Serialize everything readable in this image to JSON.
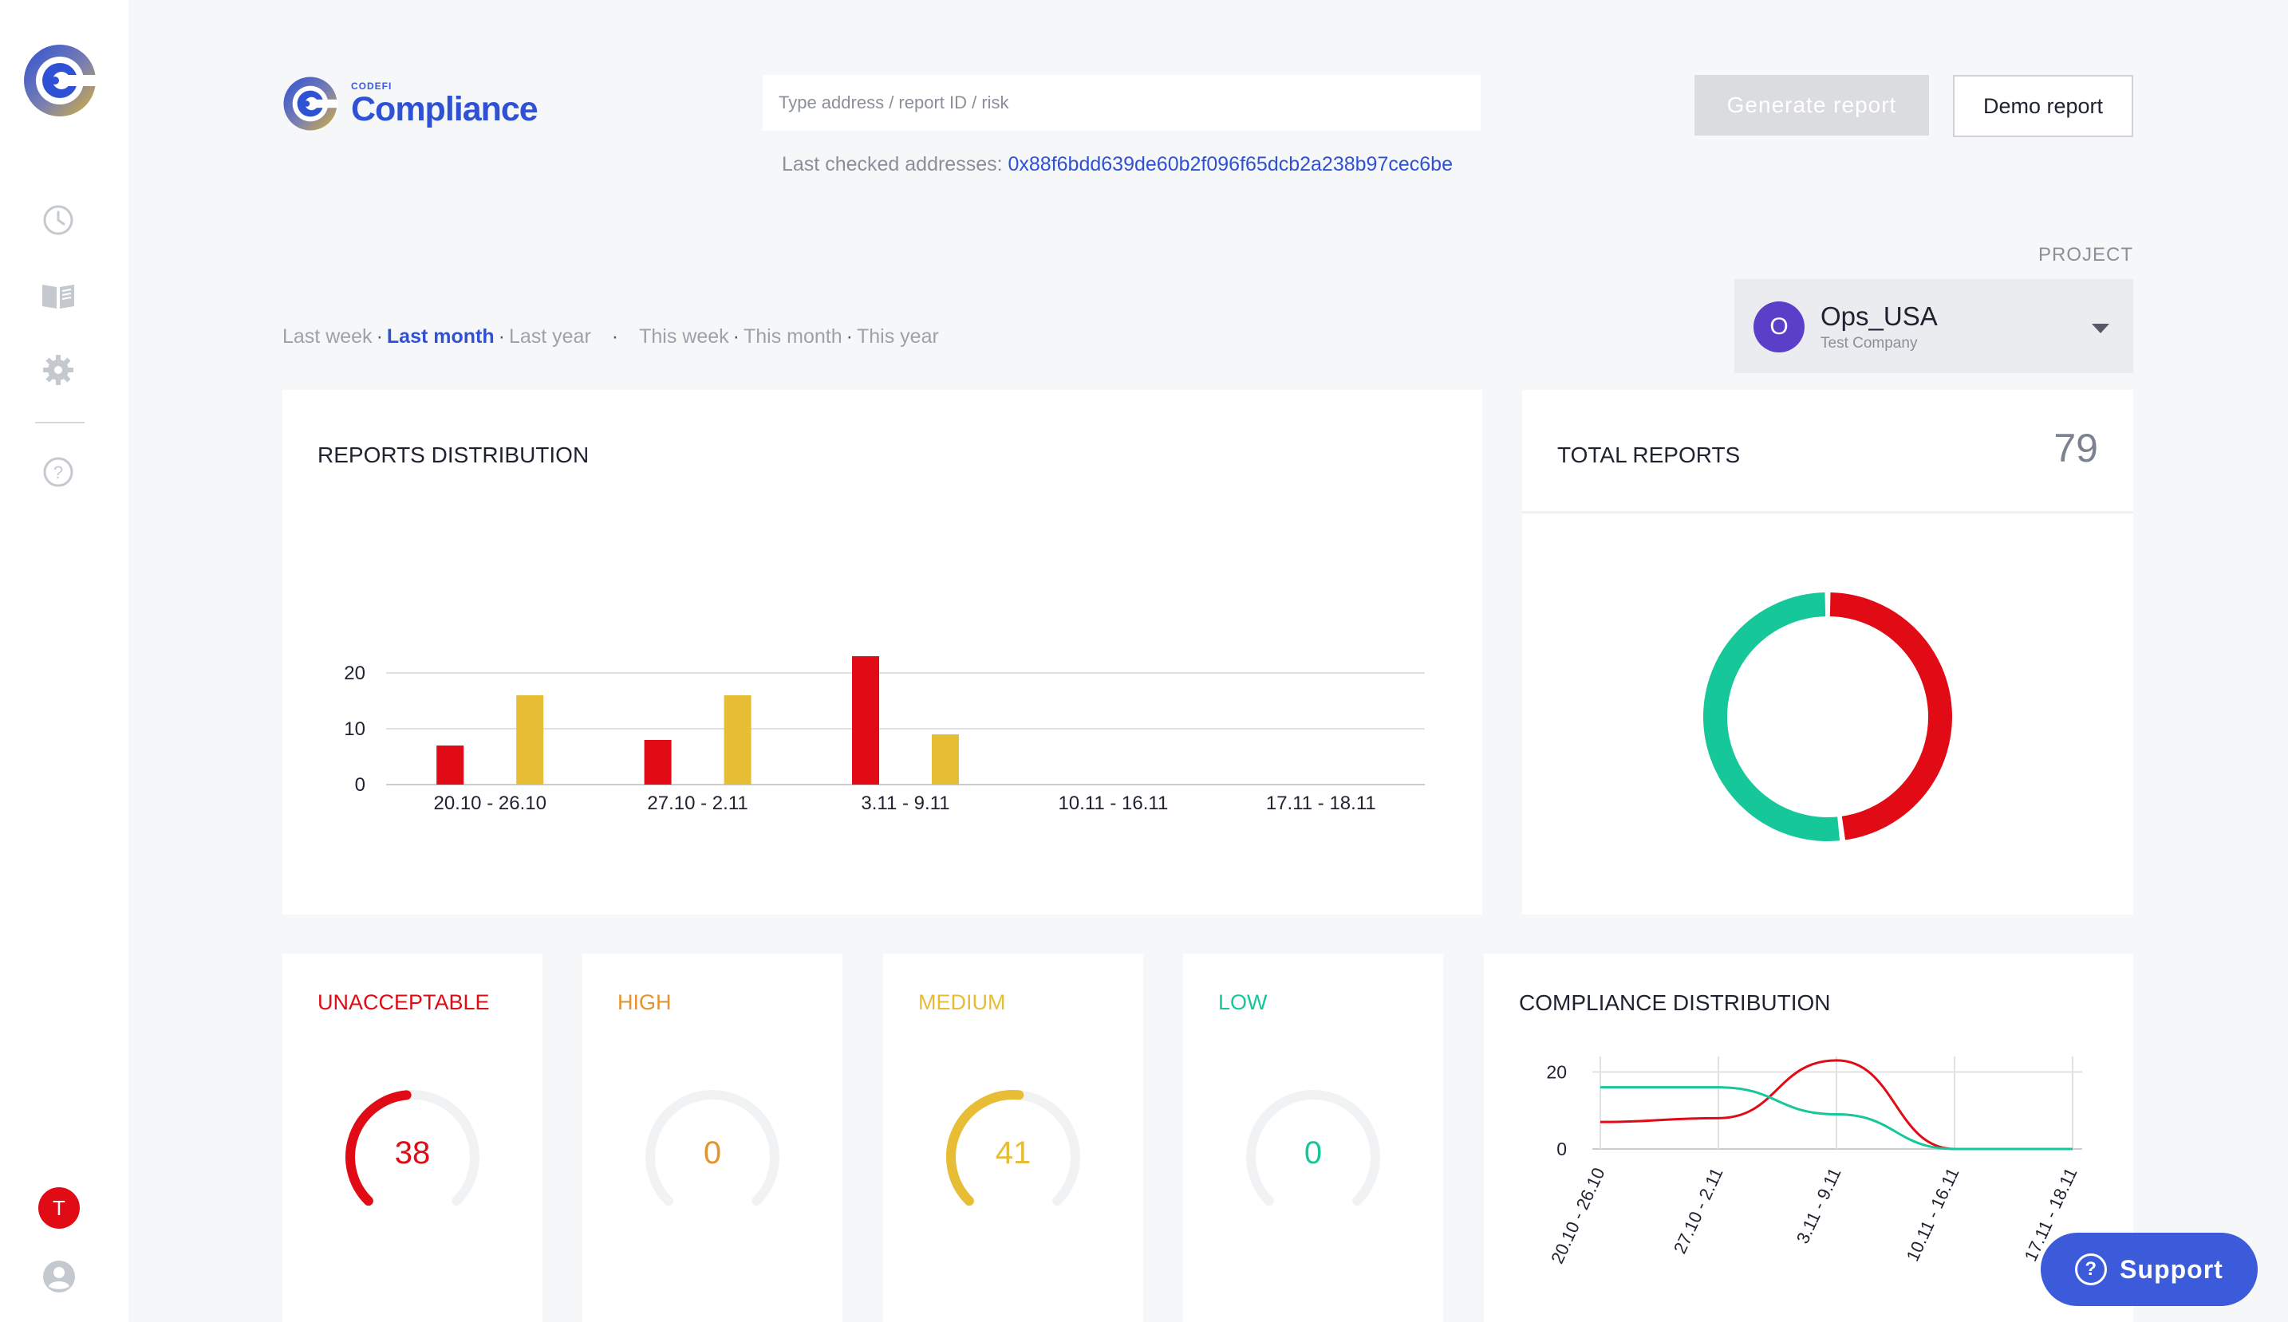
{
  "colors": {
    "brand_blue": "#2f52d4",
    "unacceptable": "#e00b14",
    "high": "#e4932e",
    "medium": "#e6bd35",
    "low": "#16c79a",
    "generate_disabled": "#dadcdf",
    "project_avatar": "#5b3fc8"
  },
  "sidebar": {
    "logo_icon": "codefi-logo-icon",
    "items": [
      {
        "icon": "clock-icon",
        "name": "history"
      },
      {
        "icon": "book-icon",
        "name": "documentation"
      },
      {
        "icon": "gear-icon",
        "name": "settings"
      },
      {
        "icon": "help-icon",
        "name": "help"
      }
    ],
    "avatar_initial": "T",
    "user_icon": "user-icon"
  },
  "header": {
    "brand_sub": "CODEFI",
    "brand_name": "Compliance",
    "search_placeholder": "Type address / report ID / risk",
    "last_checked_label": "Last checked addresses: ",
    "last_checked_address": "0x88f6bdd639de60b2f096f65dcb2a238b97cec6be",
    "generate_label": "Generate report",
    "demo_label": "Demo report"
  },
  "project": {
    "label": "PROJECT",
    "initial": "O",
    "name": "Ops_USA",
    "company": "Test Company"
  },
  "periods": {
    "last_week": "Last week",
    "last_month": "Last month",
    "last_year": "Last year",
    "this_week": "This week",
    "this_month": "This month",
    "this_year": "This year",
    "active": "last_month",
    "sep": " · "
  },
  "reports_distribution": {
    "title": "REPORTS DISTRIBUTION"
  },
  "total_reports": {
    "title": "TOTAL REPORTS",
    "value": "79"
  },
  "risks": [
    {
      "key": "unacceptable",
      "label": "UNACCEPTABLE",
      "value": "38",
      "fraction": 0.48,
      "color": "#e00b14"
    },
    {
      "key": "high",
      "label": "HIGH",
      "value": "0",
      "fraction": 0,
      "color": "#e4932e"
    },
    {
      "key": "medium",
      "label": "MEDIUM",
      "value": "41",
      "fraction": 0.52,
      "color": "#e6bd35"
    },
    {
      "key": "low",
      "label": "LOW",
      "value": "0",
      "fraction": 0,
      "color": "#16c79a"
    }
  ],
  "compliance_distribution": {
    "title": "COMPLIANCE DISTRIBUTION"
  },
  "support": {
    "label": "Support"
  },
  "chart_data": [
    {
      "type": "bar",
      "title": "REPORTS DISTRIBUTION",
      "categories": [
        "20.10 - 26.10",
        "27.10 - 2.11",
        "3.11 - 9.11",
        "10.11 - 16.11",
        "17.11 - 18.11"
      ],
      "series": [
        {
          "color": "#e00b14",
          "values": [
            7,
            8,
            23,
            0,
            0
          ]
        },
        {
          "color": "#e6bd35",
          "values": [
            16,
            16,
            9,
            0,
            0
          ]
        }
      ],
      "yticks": [
        0,
        10,
        20
      ],
      "ylim": [
        0,
        24
      ],
      "grid": true
    },
    {
      "type": "pie",
      "title": "TOTAL REPORTS",
      "donut": true,
      "slices": [
        {
          "color": "#e00b14",
          "value": 38
        },
        {
          "color": "#16c79a",
          "value": 41
        }
      ]
    },
    {
      "type": "line",
      "title": "COMPLIANCE DISTRIBUTION",
      "categories": [
        "20.10 - 26.10",
        "27.10 - 2.11",
        "3.11 - 9.11",
        "10.11 - 16.11",
        "17.11 - 18.11"
      ],
      "series": [
        {
          "color": "#e00b14",
          "values": [
            7,
            8,
            23,
            0,
            0
          ]
        },
        {
          "color": "#16c79a",
          "values": [
            16,
            16,
            9,
            0,
            0
          ]
        }
      ],
      "yticks": [
        0,
        20
      ],
      "ylim": [
        0,
        24
      ],
      "grid": true
    }
  ]
}
